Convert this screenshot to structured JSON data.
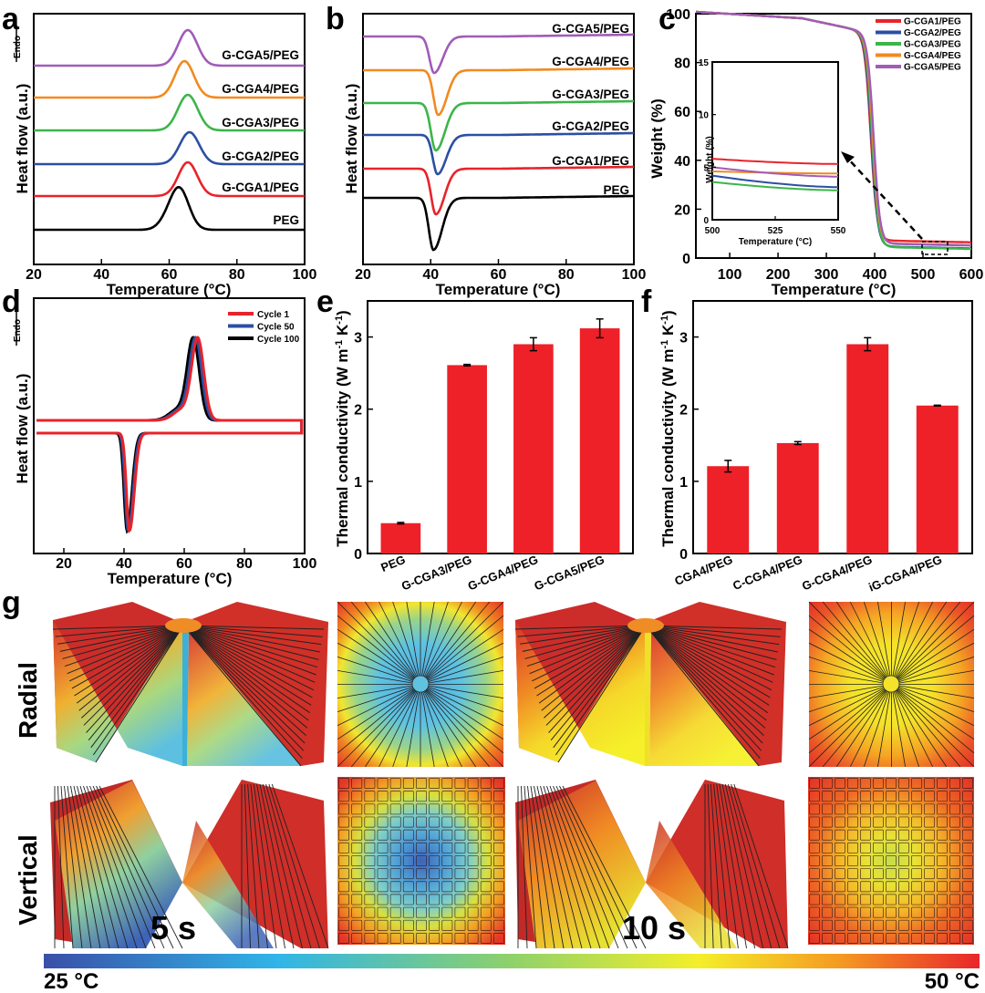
{
  "figure": {
    "panel_labels": {
      "a": "a",
      "b": "b",
      "c": "c",
      "d": "d",
      "e": "e",
      "f": "f",
      "g": "g"
    },
    "endo_label": "Endo",
    "heat_flow_label": "Heat flow (a.u.)",
    "temperature_label": "Temperature (°C)",
    "weight_label": "Weight (%)",
    "tc_label_main": "Thermal conductivity (W m",
    "tc_label_sup1": "-1",
    "tc_label_mid": " K",
    "tc_label_sup2": "-1",
    "tc_label_end": ")",
    "row_labels": {
      "radial": "Radial",
      "vertical": "Vertical"
    },
    "time_labels": {
      "t1": "5 s",
      "t2": "10 s"
    },
    "colorbar": {
      "min_label": "25 °C",
      "max_label": "50 °C"
    },
    "colors": {
      "red": "#e8232a",
      "blue": "#2c4fa3",
      "green": "#3cb54a",
      "orange": "#f28a1f",
      "purple": "#a05cb8",
      "black": "#000000",
      "bar": "#ee2028"
    }
  },
  "chart_data": [
    {
      "id": "a",
      "type": "line",
      "title": "",
      "xlabel": "Temperature (°C)",
      "ylabel": "Heat flow (a.u.)",
      "xlim": [
        20,
        100
      ],
      "xticks": [
        20,
        40,
        60,
        80,
        100
      ],
      "series": [
        {
          "name": "PEG",
          "label": "PEG",
          "color": "black",
          "peak_c": 63.0,
          "width_c": 2.8,
          "height": 45
        },
        {
          "name": "G-CGA1/PEG",
          "label": "G-CGA1/PEG",
          "color": "red",
          "peak_c": 65.5,
          "width_c": 2.8,
          "height": 37
        },
        {
          "name": "G-CGA2/PEG",
          "label": "G-CGA2/PEG",
          "color": "blue",
          "peak_c": 66.0,
          "width_c": 2.9,
          "height": 35
        },
        {
          "name": "G-CGA3/PEG",
          "label": "G-CGA3/PEG",
          "color": "green",
          "peak_c": 65.5,
          "width_c": 2.9,
          "height": 39
        },
        {
          "name": "G-CGA4/PEG",
          "label": "G-CGA4/PEG",
          "color": "orange",
          "peak_c": 64.5,
          "width_c": 2.8,
          "height": 40
        },
        {
          "name": "G-CGA5/PEG",
          "label": "G-CGA5/PEG",
          "color": "purple",
          "peak_c": 65.5,
          "width_c": 2.8,
          "height": 39
        }
      ]
    },
    {
      "id": "b",
      "type": "line",
      "title": "",
      "xlabel": "Temperature (°C)",
      "ylabel": "Heat flow (a.u.)",
      "xlim": [
        20,
        100
      ],
      "xticks": [
        20,
        40,
        60,
        80,
        100
      ],
      "series": [
        {
          "name": "PEG",
          "label": "PEG",
          "color": "black",
          "peak_c": 40.8,
          "width_c": 1.7,
          "depth": 57
        },
        {
          "name": "G-CGA1/PEG",
          "label": "G-CGA1/PEG",
          "color": "red",
          "peak_c": 41.5,
          "width_c": 1.7,
          "depth": 50
        },
        {
          "name": "G-CGA2/PEG",
          "label": "G-CGA2/PEG",
          "color": "blue",
          "peak_c": 42.0,
          "width_c": 1.7,
          "depth": 43
        },
        {
          "name": "G-CGA3/PEG",
          "label": "G-CGA3/PEG",
          "color": "green",
          "peak_c": 41.5,
          "width_c": 1.8,
          "depth": 52
        },
        {
          "name": "G-CGA4/PEG",
          "label": "G-CGA4/PEG",
          "color": "orange",
          "peak_c": 42.2,
          "width_c": 1.7,
          "depth": 49
        },
        {
          "name": "G-CGA5/PEG",
          "label": "G-CGA5/PEG",
          "color": "purple",
          "peak_c": 41.0,
          "width_c": 1.7,
          "depth": 40
        }
      ]
    },
    {
      "id": "c",
      "type": "line",
      "title": "",
      "xlabel": "Temperature (°C)",
      "ylabel": "Weight (%)",
      "xlim": [
        30,
        600
      ],
      "ylim": [
        0,
        100
      ],
      "xticks": [
        100,
        200,
        300,
        400,
        500,
        600
      ],
      "yticks": [
        0,
        20,
        40,
        60,
        80,
        100
      ],
      "series": [
        {
          "name": "G-CGA1/PEG",
          "label": "G-CGA1/PEG",
          "color": "red",
          "residue": 5.7,
          "inset_start": 5.8,
          "inset_end": 5.3
        },
        {
          "name": "G-CGA2/PEG",
          "label": "G-CGA2/PEG",
          "color": "blue",
          "residue": 3.2,
          "inset_start": 4.2,
          "inset_end": 3.1
        },
        {
          "name": "G-CGA3/PEG",
          "label": "G-CGA3/PEG",
          "color": "green",
          "residue": 3.0,
          "inset_start": 3.6,
          "inset_end": 2.8
        },
        {
          "name": "G-CGA4/PEG",
          "label": "G-CGA4/PEG",
          "color": "orange",
          "residue": 4.5,
          "inset_start": 4.6,
          "inset_end": 4.4
        },
        {
          "name": "G-CGA5/PEG",
          "label": "G-CGA5/PEG",
          "color": "purple",
          "residue": 4.4,
          "inset_start": 5.0,
          "inset_end": 4.1
        }
      ],
      "inset": {
        "xlabel": "Temperature (°C)",
        "ylabel": "Weight (%)",
        "xlim": [
          500,
          550
        ],
        "ylim": [
          0,
          15
        ],
        "xticks": [
          500,
          525,
          550
        ],
        "yticks": [
          0,
          5,
          10,
          15
        ]
      }
    },
    {
      "id": "d",
      "type": "line",
      "title": "",
      "xlabel": "Temperature (°C)",
      "ylabel": "Heat flow (a.u.)",
      "xlim": [
        10,
        100
      ],
      "xticks": [
        20,
        40,
        60,
        80,
        100
      ],
      "legend": "top-right",
      "series": [
        {
          "name": "Cycle 1",
          "label": "Cycle 1",
          "color": "red",
          "melt_peak": 64.5,
          "cryst_peak": 41.8
        },
        {
          "name": "Cycle 50",
          "label": "Cycle 50",
          "color": "blue",
          "melt_peak": 63.8,
          "cryst_peak": 41.4
        },
        {
          "name": "Cycle 100",
          "label": "Cycle 100",
          "color": "black",
          "melt_peak": 63.0,
          "cryst_peak": 41.0
        }
      ]
    },
    {
      "id": "e",
      "type": "bar",
      "title": "",
      "xlabel": "",
      "ylabel": "Thermal conductivity (W m-1 K-1)",
      "ylim": [
        0,
        3.5
      ],
      "yticks": [
        0,
        1,
        2,
        3
      ],
      "categories": [
        "PEG",
        "G-CGA3/PEG",
        "G-CGA4/PEG",
        "G-CGA5/PEG"
      ],
      "values": [
        0.42,
        2.61,
        2.9,
        3.12
      ],
      "errors": [
        0.01,
        0.01,
        0.09,
        0.13
      ]
    },
    {
      "id": "f",
      "type": "bar",
      "title": "",
      "xlabel": "",
      "ylabel": "Thermal conductivity (W m-1 K-1)",
      "ylim": [
        0,
        3.5
      ],
      "yticks": [
        0,
        1,
        2,
        3
      ],
      "categories": [
        "CGA4/PEG",
        "C-CGA4/PEG",
        "G-CGA4/PEG",
        "iG-CGA4/PEG"
      ],
      "values": [
        1.21,
        1.53,
        2.9,
        2.05
      ],
      "errors": [
        0.08,
        0.02,
        0.09,
        0.005
      ]
    }
  ]
}
